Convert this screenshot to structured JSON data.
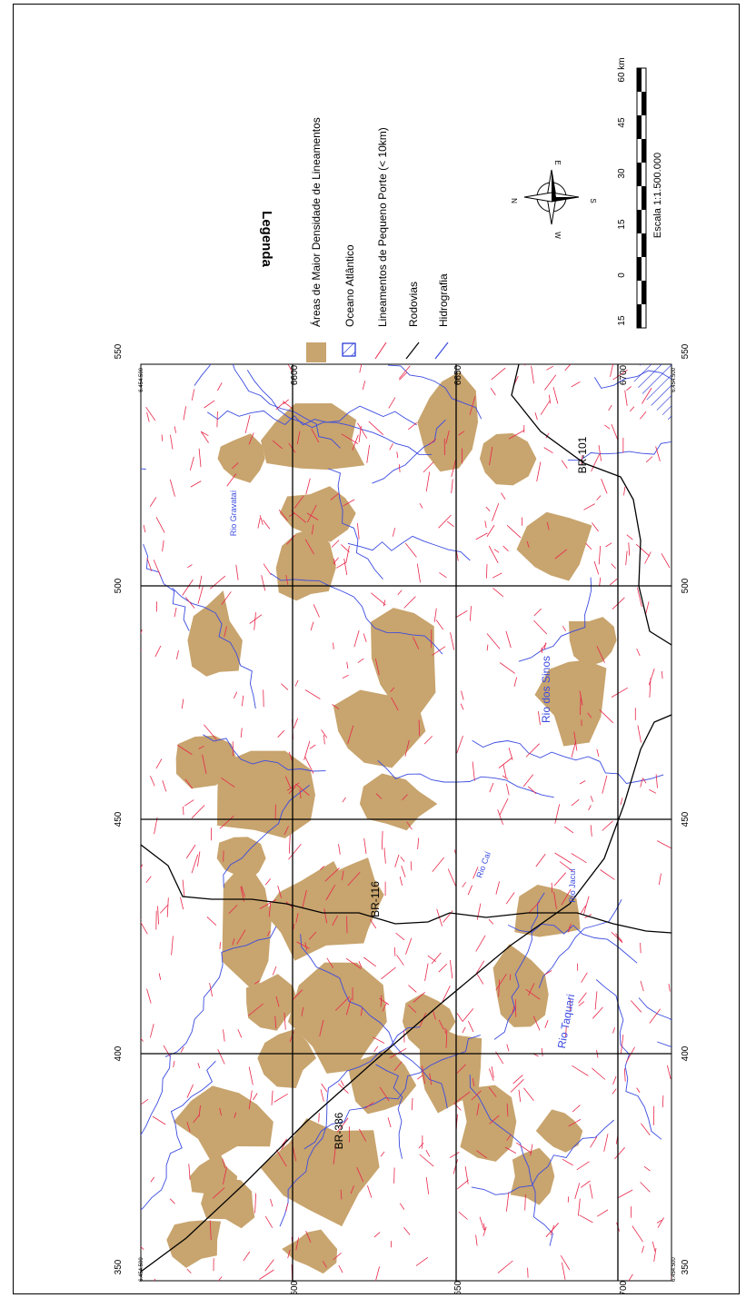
{
  "legend": {
    "title": "Legenda",
    "items": [
      {
        "label": "Áreas de Maior Densidade de Lineamentos",
        "symbol": "fill",
        "color": "#c8a46e"
      },
      {
        "label": "Oceano Atlântico",
        "symbol": "hatch",
        "color": "#1c2dd6"
      },
      {
        "label": "Lineamentos de Pequeno Porte (< 10km)",
        "symbol": "line",
        "color": "#e8274a"
      },
      {
        "label": "Rodovias",
        "symbol": "line",
        "color": "#000000"
      },
      {
        "label": "Hidrografia",
        "symbol": "line",
        "color": "#3b4be0"
      }
    ]
  },
  "compass": {
    "n": "N",
    "s": "S",
    "e": "E",
    "w": "W"
  },
  "scale_bar": {
    "ticks": [
      "15",
      "0",
      "15",
      "30",
      "45",
      "60 km"
    ],
    "caption": "Escala 1:1.500.000"
  },
  "grid": {
    "easting_labels": [
      "350",
      "400",
      "450",
      "500",
      "550",
      "6"
    ],
    "northing_labels": [
      "6700",
      "6650",
      "6600",
      "6550"
    ],
    "corner_labels": [
      "6.454.500",
      "6.454.500",
      "6.454.500",
      "6.454.500"
    ]
  },
  "map_labels": {
    "roads": [
      "BR-386",
      "BR-116",
      "BR-101"
    ],
    "rivers": [
      "Rio Taquari",
      "Rio dos Sinos",
      "Rio Caí",
      "Rio Jacuí",
      "Rio Gravataí"
    ]
  },
  "colors": {
    "density": "#c8a46e",
    "lineament": "#e8274a",
    "river": "#3b4be0",
    "road": "#000000",
    "ocean": "#1c2dd6"
  }
}
